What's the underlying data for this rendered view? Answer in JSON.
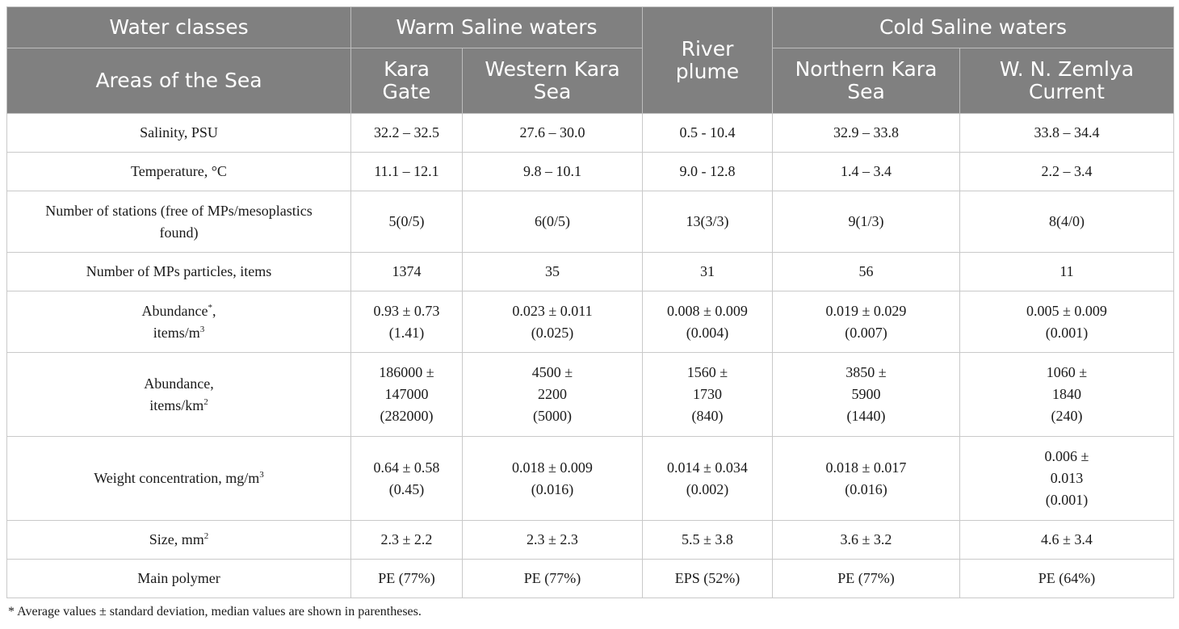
{
  "header": {
    "water_classes": "Water classes",
    "areas": "Areas of the Sea",
    "warm": "Warm Saline waters",
    "river_plume": "River plume",
    "cold": "Cold Saline waters",
    "kara_gate": "Kara Gate",
    "western_kara": "Western Kara Sea",
    "northern_kara": "Northern Kara Sea",
    "wnz_current": "W. N. Zemlya Current"
  },
  "rows": {
    "salinity": {
      "label": "Salinity, PSU",
      "v": [
        "32.2 – 32.5",
        "27.6 – 30.0",
        "0.5 - 10.4",
        "32.9 – 33.8",
        "33.8 – 34.4"
      ]
    },
    "temperature": {
      "label": "Temperature, °C",
      "v": [
        "11.1 – 12.1",
        "9.8 – 10.1",
        "9.0 - 12.8",
        "1.4 – 3.4",
        "2.2 – 3.4"
      ]
    },
    "stations": {
      "label_1": "Number of stations (free of MPs/mesoplastics",
      "label_2": "found)",
      "v": [
        "5(0/5)",
        "6(0/5)",
        "13(3/3)",
        "9(1/3)",
        "8(4/0)"
      ]
    },
    "particles": {
      "label": "Number of MPs particles, items",
      "v": [
        "1374",
        "35",
        "31",
        "56",
        "11"
      ]
    },
    "abundance_m3": {
      "label_1": "Abundance",
      "label_mark": "*",
      "label_1_tail": ",",
      "label_2": "items/m",
      "label_sup": "3",
      "v": [
        [
          "0.93 ± 0.73",
          "(1.41)"
        ],
        [
          "0.023 ± 0.011",
          "(0.025)"
        ],
        [
          "0.008 ± 0.009",
          "(0.004)"
        ],
        [
          "0.019 ± 0.029",
          "(0.007)"
        ],
        [
          "0.005 ± 0.009",
          "(0.001)"
        ]
      ]
    },
    "abundance_km2": {
      "label_1": "Abundance,",
      "label_2": "items/km",
      "label_sup": "2",
      "v": [
        [
          "186000 ±",
          "147000",
          "(282000)"
        ],
        [
          "4500 ±",
          "2200",
          "(5000)"
        ],
        [
          "1560 ±",
          "1730",
          "(840)"
        ],
        [
          "3850 ±",
          "5900",
          "(1440)"
        ],
        [
          "1060 ±",
          "1840",
          "(240)"
        ]
      ]
    },
    "weight": {
      "label": "Weight concentration, mg/m",
      "label_sup": "3",
      "v": [
        [
          "0.64 ± 0.58",
          "(0.45)"
        ],
        [
          "0.018 ± 0.009",
          "(0.016)"
        ],
        [
          "0.014 ± 0.034",
          "(0.002)"
        ],
        [
          "0.018 ± 0.017",
          "(0.016)"
        ],
        [
          "0.006 ±",
          "0.013",
          "(0.001)"
        ]
      ]
    },
    "size": {
      "label": "Size, mm",
      "label_sup": "2",
      "v": [
        "2.3 ± 2.2",
        "2.3 ± 2.3",
        "5.5 ± 3.8",
        "3.6 ± 3.2",
        "4.6 ± 3.4"
      ]
    },
    "polymer": {
      "label": "Main polymer",
      "v": [
        "PE (77%)",
        "PE (77%)",
        "EPS (52%)",
        "PE (77%)",
        "PE (64%)"
      ]
    }
  },
  "footnote": "* Average values ± standard deviation, median values are shown in parentheses."
}
